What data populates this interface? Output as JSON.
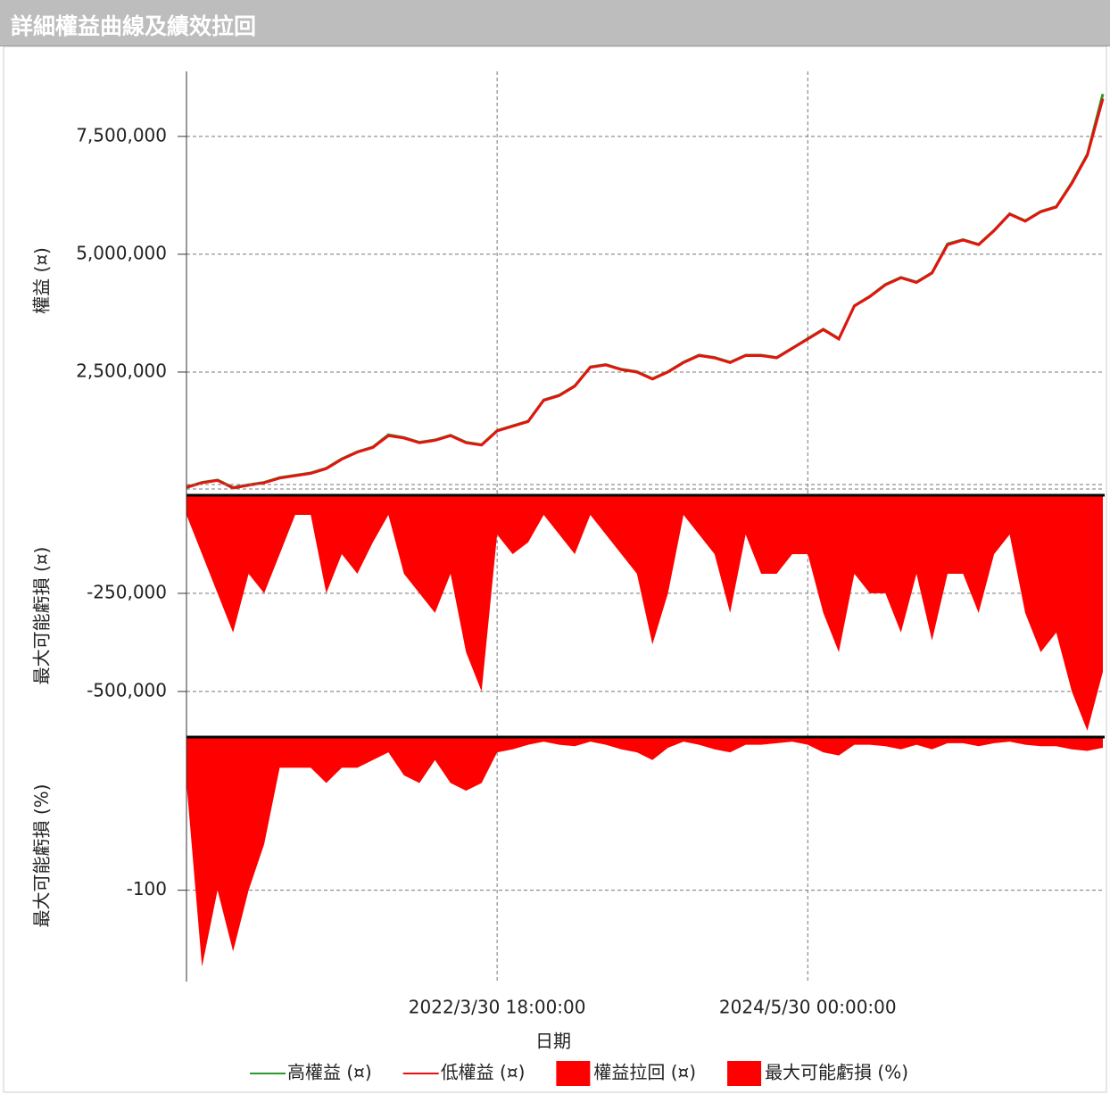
{
  "header": {
    "title": "詳細權益曲線及績效拉回"
  },
  "chart_data": [
    {
      "type": "line",
      "ylabel": "權益 (¤)",
      "ylim": [
        0,
        8880000
      ],
      "yticks": [
        {
          "value": 2500000,
          "label": "2,500,000"
        },
        {
          "value": 5000000,
          "label": "5,000,000"
        },
        {
          "value": 7500000,
          "label": "7,500,000"
        }
      ],
      "grid": true,
      "series": [
        {
          "name": "高權益 (¤)",
          "color": "#2a9a2a",
          "values": [
            60000,
            160000,
            210000,
            50000,
            110000,
            160000,
            260000,
            310000,
            360000,
            460000,
            660000,
            810000,
            910000,
            1170000,
            1110000,
            1010000,
            1060000,
            1160000,
            1010000,
            960000,
            1260000,
            1360000,
            1460000,
            1910000,
            2010000,
            2210000,
            2610000,
            2660000,
            2560000,
            2510000,
            2360000,
            2510000,
            2710000,
            2860000,
            2810000,
            2710000,
            2860000,
            2860000,
            2810000,
            3010000,
            3210000,
            3410000,
            3210000,
            3910000,
            4110000,
            4360000,
            4510000,
            4410000,
            4610000,
            5220000,
            5310000,
            5210000,
            5510000,
            5860000,
            5710000,
            5910000,
            6010000,
            6520000,
            7120000,
            8400000
          ]
        },
        {
          "name": "低權益 (¤)",
          "color": "#e8110f",
          "values": [
            50000,
            150000,
            200000,
            40000,
            100000,
            150000,
            250000,
            300000,
            350000,
            450000,
            650000,
            800000,
            900000,
            1150000,
            1100000,
            1000000,
            1050000,
            1150000,
            1000000,
            950000,
            1250000,
            1350000,
            1450000,
            1900000,
            2000000,
            2200000,
            2600000,
            2650000,
            2550000,
            2500000,
            2350000,
            2500000,
            2700000,
            2850000,
            2800000,
            2700000,
            2850000,
            2850000,
            2800000,
            3000000,
            3200000,
            3400000,
            3200000,
            3900000,
            4100000,
            4350000,
            4500000,
            4400000,
            4600000,
            5200000,
            5300000,
            5200000,
            5500000,
            5850000,
            5700000,
            5900000,
            6000000,
            6500000,
            7100000,
            8300000
          ]
        }
      ]
    },
    {
      "type": "area",
      "ylabel": "最大可能虧損 (¤)",
      "ylim": [
        -614000,
        0
      ],
      "yticks": [
        {
          "value": -500000,
          "label": "-500,000"
        },
        {
          "value": -250000,
          "label": "-250,000"
        }
      ],
      "grid": true,
      "series": [
        {
          "name": "權益拉回 (¤)",
          "color": "#ff0000",
          "values": [
            -50000,
            -150000,
            -250000,
            -350000,
            -200000,
            -250000,
            -150000,
            -50000,
            -50000,
            -250000,
            -150000,
            -200000,
            -120000,
            -50000,
            -200000,
            -250000,
            -300000,
            -200000,
            -400000,
            -500000,
            -100000,
            -150000,
            -120000,
            -50000,
            -100000,
            -150000,
            -50000,
            -100000,
            -150000,
            -200000,
            -380000,
            -250000,
            -50000,
            -100000,
            -150000,
            -300000,
            -100000,
            -200000,
            -200000,
            -150000,
            -150000,
            -300000,
            -400000,
            -200000,
            -250000,
            -250000,
            -350000,
            -200000,
            -370000,
            -200000,
            -200000,
            -300000,
            -150000,
            -100000,
            -300000,
            -400000,
            -350000,
            -500000,
            -600000,
            -450000
          ]
        }
      ]
    },
    {
      "type": "area",
      "ylabel": "最大可能虧損 (%)",
      "ylim": [
        -155,
        0
      ],
      "yticks": [
        -100
      ],
      "grid": true,
      "xlabel": "日期",
      "categories": [
        null,
        null,
        null,
        null,
        null,
        null,
        null,
        null,
        null,
        null,
        null,
        null,
        null,
        null,
        null,
        null,
        null,
        null,
        null,
        null,
        "2022/3/30 18:00:00",
        null,
        null,
        null,
        null,
        null,
        null,
        null,
        null,
        null,
        null,
        null,
        null,
        null,
        null,
        null,
        null,
        null,
        null,
        null,
        "2024/5/30 00:00:00",
        null,
        null,
        null,
        null,
        null,
        null,
        null,
        null,
        null,
        null,
        null,
        null,
        null,
        null,
        null,
        null,
        null,
        null,
        null
      ],
      "series": [
        {
          "name": "最大可能虧損 (%)",
          "color": "#ff0000",
          "values": [
            -30,
            -150,
            -100,
            -140,
            -100,
            -70,
            -20,
            -20,
            -20,
            -30,
            -20,
            -20,
            -15,
            -10,
            -25,
            -30,
            -15,
            -30,
            -35,
            -30,
            -10,
            -8,
            -5,
            -3,
            -5,
            -6,
            -3,
            -5,
            -8,
            -10,
            -15,
            -7,
            -3,
            -5,
            -8,
            -10,
            -5,
            -5,
            -4,
            -3,
            -5,
            -10,
            -12,
            -5,
            -5,
            -6,
            -8,
            -5,
            -8,
            -4,
            -4,
            -6,
            -4,
            -3,
            -5,
            -6,
            -6,
            -8,
            -9,
            -7
          ]
        }
      ]
    }
  ]
}
